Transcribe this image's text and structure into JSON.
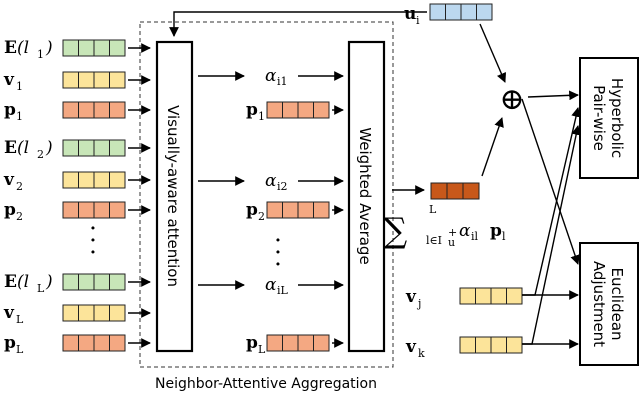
{
  "colors": {
    "green": "#c8e6b8",
    "yellow": "#fce49a",
    "orange": "#f4a882",
    "blue": "#bcd8ef",
    "dark_orange": "#c8581a"
  },
  "inputs": [
    {
      "symbol": "E",
      "paren": "(l",
      "sub": "1",
      "close": ")",
      "color": "green"
    },
    {
      "symbol": "v",
      "sub": "1",
      "color": "yellow"
    },
    {
      "symbol": "p",
      "sub": "1",
      "color": "orange"
    },
    {
      "symbol": "E",
      "paren": "(l",
      "sub": "2",
      "close": ")",
      "color": "green"
    },
    {
      "symbol": "v",
      "sub": "2",
      "color": "yellow"
    },
    {
      "symbol": "p",
      "sub": "2",
      "color": "orange"
    },
    {
      "symbol": "E",
      "paren": "(l",
      "sub": "L",
      "close": ")",
      "color": "green"
    },
    {
      "symbol": "v",
      "sub": "L",
      "color": "yellow"
    },
    {
      "symbol": "p",
      "sub": "L",
      "color": "orange"
    }
  ],
  "attention_outputs": [
    {
      "alpha": "α",
      "alpha_sub": "i1",
      "p_sub": "1"
    },
    {
      "alpha": "α",
      "alpha_sub": "i2",
      "p_sub": "2"
    },
    {
      "alpha": "α",
      "alpha_sub": "iL",
      "p_sub": "L"
    }
  ],
  "boxes": {
    "attention": "Visually-aware attention",
    "weighted_average": "Weighted Average",
    "hyperbolic_line1": "Hyperbolic",
    "hyperbolic_line2": "Pair-wise",
    "euclidean_line1": "Euclidean",
    "euclidean_line2": "Adjustment"
  },
  "user": {
    "symbol": "u",
    "sub": "i"
  },
  "items": [
    {
      "symbol": "v",
      "sub": "j"
    },
    {
      "symbol": "v",
      "sub": "k"
    }
  ],
  "sum_formula": {
    "sigma": "∑",
    "upper": "L",
    "lower": "l∈I",
    "lower_sup": "+",
    "lower_sub": "u",
    "alpha": "α",
    "alpha_sub": "il",
    "p": "p",
    "p_sub": "l"
  },
  "plus_symbol": "⊕",
  "dots": "·",
  "caption": "Neighbor-Attentive Aggregation"
}
